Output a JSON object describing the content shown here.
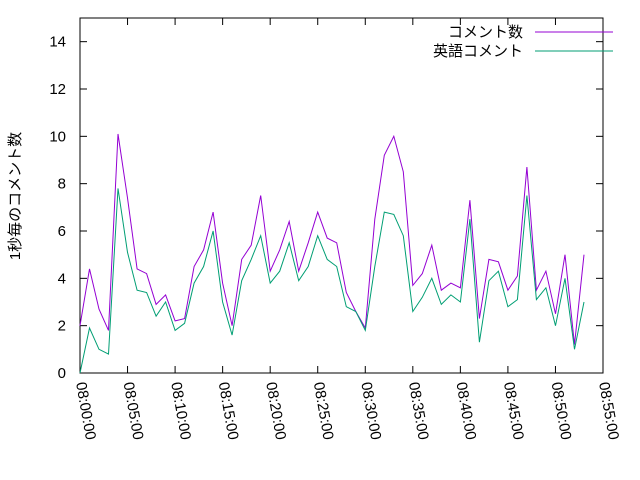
{
  "chart_data": {
    "type": "line",
    "y_label": "1秒毎のコメント数",
    "x": [
      "08:00:00",
      "08:01:00",
      "08:02:00",
      "08:03:00",
      "08:04:00",
      "08:05:00",
      "08:06:00",
      "08:07:00",
      "08:08:00",
      "08:09:00",
      "08:10:00",
      "08:11:00",
      "08:12:00",
      "08:13:00",
      "08:14:00",
      "08:15:00",
      "08:16:00",
      "08:17:00",
      "08:18:00",
      "08:19:00",
      "08:20:00",
      "08:21:00",
      "08:22:00",
      "08:23:00",
      "08:24:00",
      "08:25:00",
      "08:26:00",
      "08:27:00",
      "08:28:00",
      "08:29:00",
      "08:30:00",
      "08:31:00",
      "08:32:00",
      "08:33:00",
      "08:34:00",
      "08:35:00",
      "08:36:00",
      "08:37:00",
      "08:38:00",
      "08:39:00",
      "08:40:00",
      "08:41:00",
      "08:42:00",
      "08:43:00",
      "08:44:00",
      "08:45:00",
      "08:46:00",
      "08:47:00",
      "08:48:00",
      "08:49:00",
      "08:50:00",
      "08:51:00",
      "08:52:00",
      "08:53:00"
    ],
    "series": [
      {
        "name": "コメント数",
        "color": "#9400d3",
        "values": [
          2.0,
          4.4,
          2.7,
          1.8,
          10.1,
          7.4,
          4.4,
          4.2,
          2.9,
          3.3,
          2.2,
          2.3,
          4.5,
          5.2,
          6.8,
          3.8,
          2.0,
          4.8,
          5.4,
          7.5,
          4.3,
          5.2,
          6.4,
          4.3,
          5.5,
          6.8,
          5.7,
          5.5,
          3.4,
          2.6,
          1.9,
          6.5,
          9.2,
          10.0,
          8.5,
          3.7,
          4.2,
          5.4,
          3.5,
          3.8,
          3.6,
          7.3,
          2.3,
          4.8,
          4.7,
          3.5,
          4.1,
          8.7,
          3.5,
          4.3,
          2.5,
          5.0,
          1.2,
          5.0
        ]
      },
      {
        "name": "英語コメント",
        "color": "#009e73",
        "values": [
          0.0,
          1.9,
          1.0,
          0.8,
          7.8,
          5.1,
          3.5,
          3.4,
          2.4,
          3.0,
          1.8,
          2.1,
          3.8,
          4.5,
          6.0,
          3.0,
          1.6,
          3.9,
          4.8,
          5.8,
          3.8,
          4.3,
          5.5,
          3.9,
          4.5,
          5.8,
          4.8,
          4.5,
          2.8,
          2.6,
          1.8,
          4.5,
          6.8,
          6.7,
          5.8,
          2.6,
          3.2,
          4.0,
          2.9,
          3.3,
          3.0,
          6.5,
          1.3,
          3.9,
          4.3,
          2.8,
          3.1,
          7.5,
          3.1,
          3.6,
          2.0,
          4.0,
          1.0,
          3.0
        ]
      }
    ],
    "xlim": [
      "08:00:00",
      "08:55:00"
    ],
    "xticks": [
      "08:00:00",
      "08:05:00",
      "08:10:00",
      "08:15:00",
      "08:20:00",
      "08:25:00",
      "08:30:00",
      "08:35:00",
      "08:40:00",
      "08:45:00",
      "08:50:00",
      "08:55:00"
    ],
    "ylim": [
      0,
      15
    ],
    "yticks": [
      0,
      2,
      4,
      6,
      8,
      10,
      12,
      14
    ],
    "legend": "top right"
  }
}
